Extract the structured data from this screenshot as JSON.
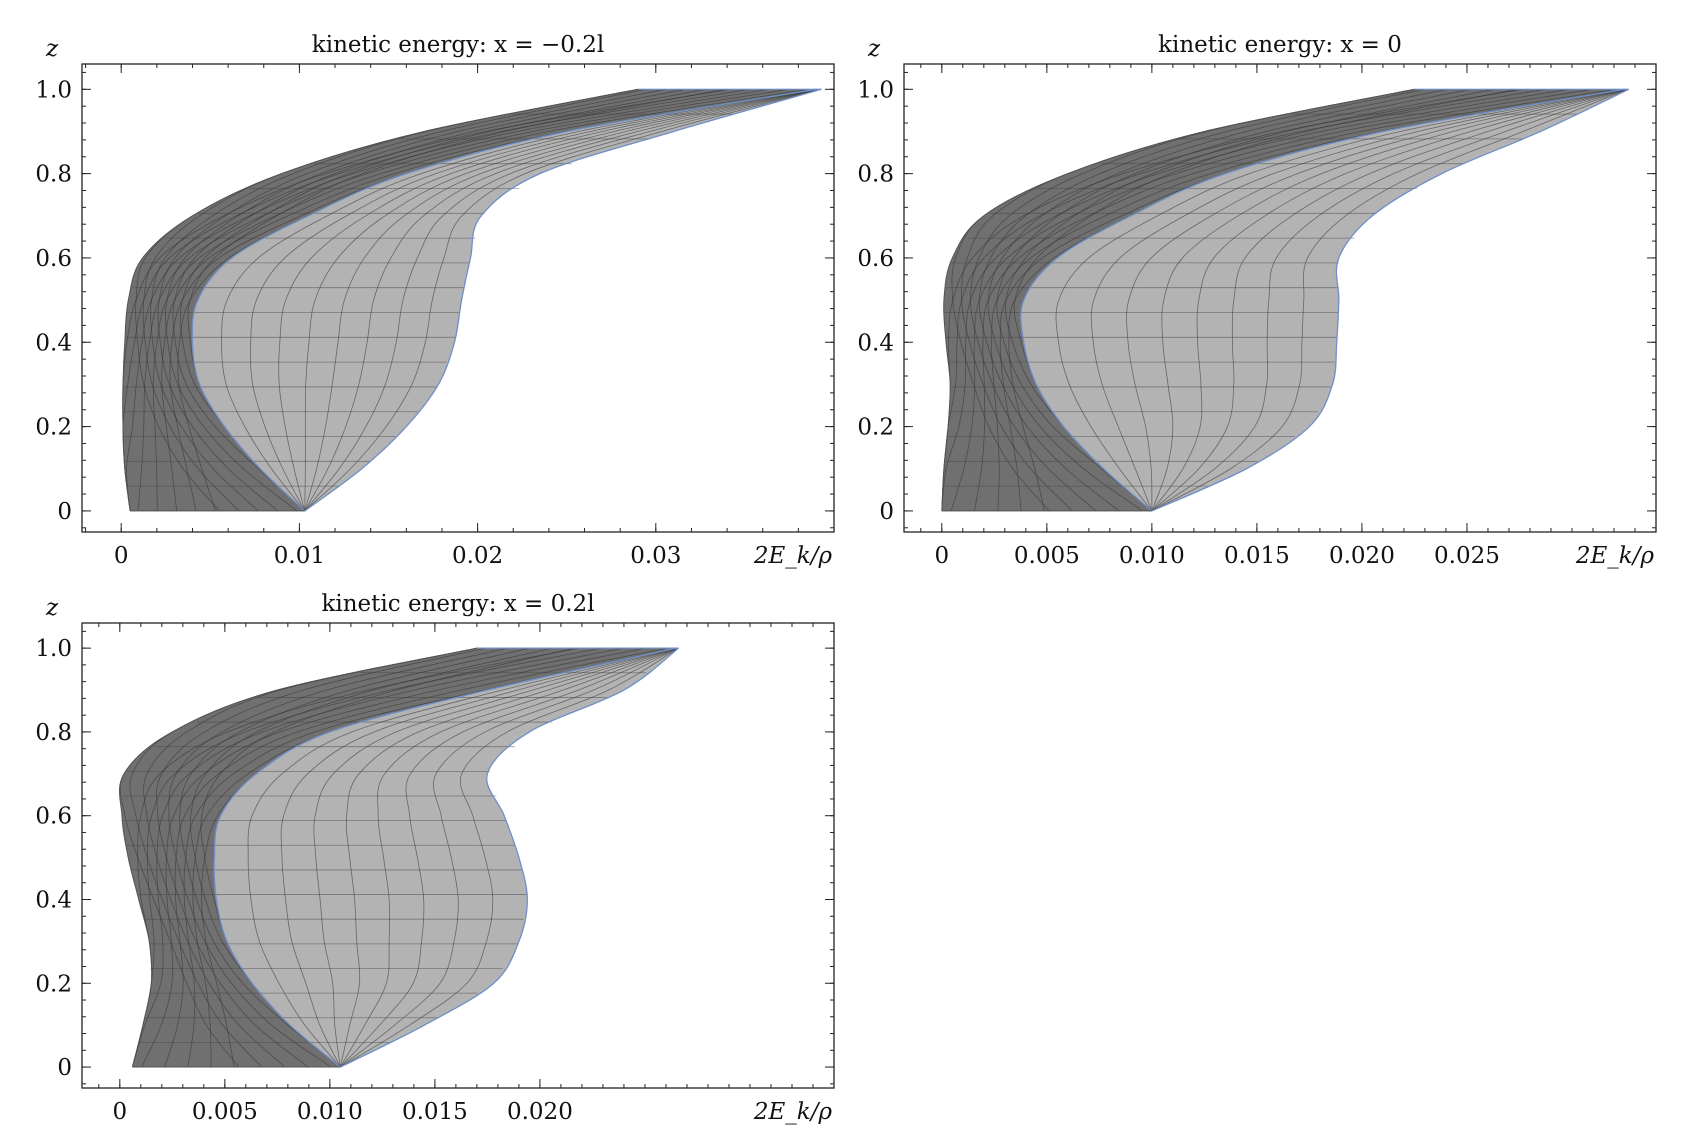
{
  "chart_data": [
    {
      "type": "area",
      "title": "kinetic energy: x = −0.2l",
      "xlabel": "2E_k/ρ",
      "ylabel": "z",
      "xlim": [
        -0.0022,
        0.04
      ],
      "ylim": [
        -0.05,
        1.06
      ],
      "xticks": [
        0,
        0.01,
        0.02,
        0.03
      ],
      "xtick_labels": [
        "0",
        "0.01",
        "0.02",
        "0.03"
      ],
      "yticks": [
        0,
        0.2,
        0.4,
        0.6,
        0.8,
        1.0
      ],
      "ytick_labels": [
        "0",
        "0.2",
        "0.4",
        "0.6",
        "0.8",
        "1.0"
      ],
      "z": [
        0,
        0.1,
        0.2,
        0.3,
        0.4,
        0.5,
        0.6,
        0.7,
        0.8,
        0.9,
        1.0
      ],
      "series": [
        {
          "role": "dark-left",
          "values": [
            0.0005,
            0.0002,
            0.0001,
            0.0001,
            0.0002,
            0.0004,
            0.0012,
            0.004,
            0.009,
            0.017,
            0.029
          ]
        },
        {
          "role": "dark-right",
          "values": [
            0.0103,
            0.0078,
            0.0058,
            0.0044,
            0.004,
            0.0043,
            0.0062,
            0.0105,
            0.016,
            0.025,
            0.039
          ]
        },
        {
          "role": "light-left",
          "values": [
            0.0103,
            0.0078,
            0.0058,
            0.0044,
            0.004,
            0.0043,
            0.0062,
            0.0105,
            0.016,
            0.025,
            0.039
          ]
        },
        {
          "role": "light-right",
          "values": [
            0.0103,
            0.0135,
            0.016,
            0.0178,
            0.0187,
            0.0191,
            0.0196,
            0.0202,
            0.0235,
            0.031,
            0.0393
          ]
        }
      ],
      "mesh_lines": 9,
      "colors": {
        "dark": "#707070",
        "light": "#b3b3b3",
        "edge": "#6f8fc8"
      }
    },
    {
      "type": "area",
      "title": "kinetic energy: x = 0",
      "xlabel": "2E_k/ρ",
      "ylabel": "z",
      "xlim": [
        -0.0018,
        0.034
      ],
      "ylim": [
        -0.05,
        1.06
      ],
      "xticks": [
        0,
        0.005,
        0.01,
        0.015,
        0.02,
        0.025
      ],
      "xtick_labels": [
        "0",
        "0.005",
        "0.010",
        "0.015",
        "0.020",
        "0.025"
      ],
      "yticks": [
        0,
        0.2,
        0.4,
        0.6,
        0.8,
        1.0
      ],
      "ytick_labels": [
        "0",
        "0.2",
        "0.4",
        "0.6",
        "0.8",
        "1.0"
      ],
      "z": [
        0,
        0.1,
        0.2,
        0.3,
        0.4,
        0.5,
        0.6,
        0.7,
        0.8,
        0.9,
        1.0
      ],
      "series": [
        {
          "role": "dark-left",
          "values": [
            0.0,
            0.0001,
            0.0003,
            0.0004,
            0.0002,
            0.0001,
            0.0005,
            0.002,
            0.006,
            0.0125,
            0.0225
          ]
        },
        {
          "role": "dark-right",
          "values": [
            0.01,
            0.0077,
            0.0058,
            0.0045,
            0.0039,
            0.0039,
            0.0055,
            0.009,
            0.0135,
            0.021,
            0.0325
          ]
        },
        {
          "role": "light-left",
          "values": [
            0.01,
            0.0077,
            0.0058,
            0.0045,
            0.0039,
            0.0039,
            0.0055,
            0.009,
            0.0135,
            0.021,
            0.0325
          ]
        },
        {
          "role": "light-right",
          "values": [
            0.01,
            0.0145,
            0.0175,
            0.0186,
            0.0188,
            0.0189,
            0.0189,
            0.0205,
            0.0238,
            0.0285,
            0.0327
          ]
        }
      ],
      "mesh_lines": 9,
      "colors": {
        "dark": "#707070",
        "light": "#b3b3b3",
        "edge": "#6f8fc8"
      }
    },
    {
      "type": "area",
      "title": "kinetic energy: x = 0.2l",
      "xlabel": "2E_k/ρ",
      "ylabel": "z",
      "xlim": [
        -0.0018,
        0.034
      ],
      "ylim": [
        -0.05,
        1.06
      ],
      "xticks": [
        0,
        0.005,
        0.01,
        0.015,
        0.02
      ],
      "xtick_labels": [
        "0",
        "0.005",
        "0.010",
        "0.015",
        "0.020"
      ],
      "yticks": [
        0,
        0.2,
        0.4,
        0.6,
        0.8,
        1.0
      ],
      "ytick_labels": [
        "0",
        "0.2",
        "0.4",
        "0.6",
        "0.8",
        "1.0"
      ],
      "z": [
        0,
        0.1,
        0.2,
        0.3,
        0.4,
        0.5,
        0.6,
        0.7,
        0.8,
        0.9,
        1.0
      ],
      "series": [
        {
          "role": "dark-left",
          "values": [
            0.0006,
            0.0011,
            0.0015,
            0.0014,
            0.0009,
            0.0004,
            0.0001,
            0.0002,
            0.0025,
            0.0075,
            0.017
          ]
        },
        {
          "role": "dark-right",
          "values": [
            0.0105,
            0.0081,
            0.0063,
            0.0051,
            0.0046,
            0.0045,
            0.0048,
            0.0065,
            0.01,
            0.0175,
            0.0265
          ]
        },
        {
          "role": "light-left",
          "values": [
            0.0105,
            0.0081,
            0.0063,
            0.0051,
            0.0046,
            0.0045,
            0.0048,
            0.0065,
            0.01,
            0.0175,
            0.0265
          ]
        },
        {
          "role": "light-right",
          "values": [
            0.0105,
            0.0145,
            0.0178,
            0.019,
            0.0194,
            0.019,
            0.0183,
            0.0175,
            0.0195,
            0.024,
            0.0266
          ]
        }
      ],
      "mesh_lines": 9,
      "colors": {
        "dark": "#707070",
        "light": "#b3b3b3",
        "edge": "#6f8fc8"
      }
    }
  ]
}
